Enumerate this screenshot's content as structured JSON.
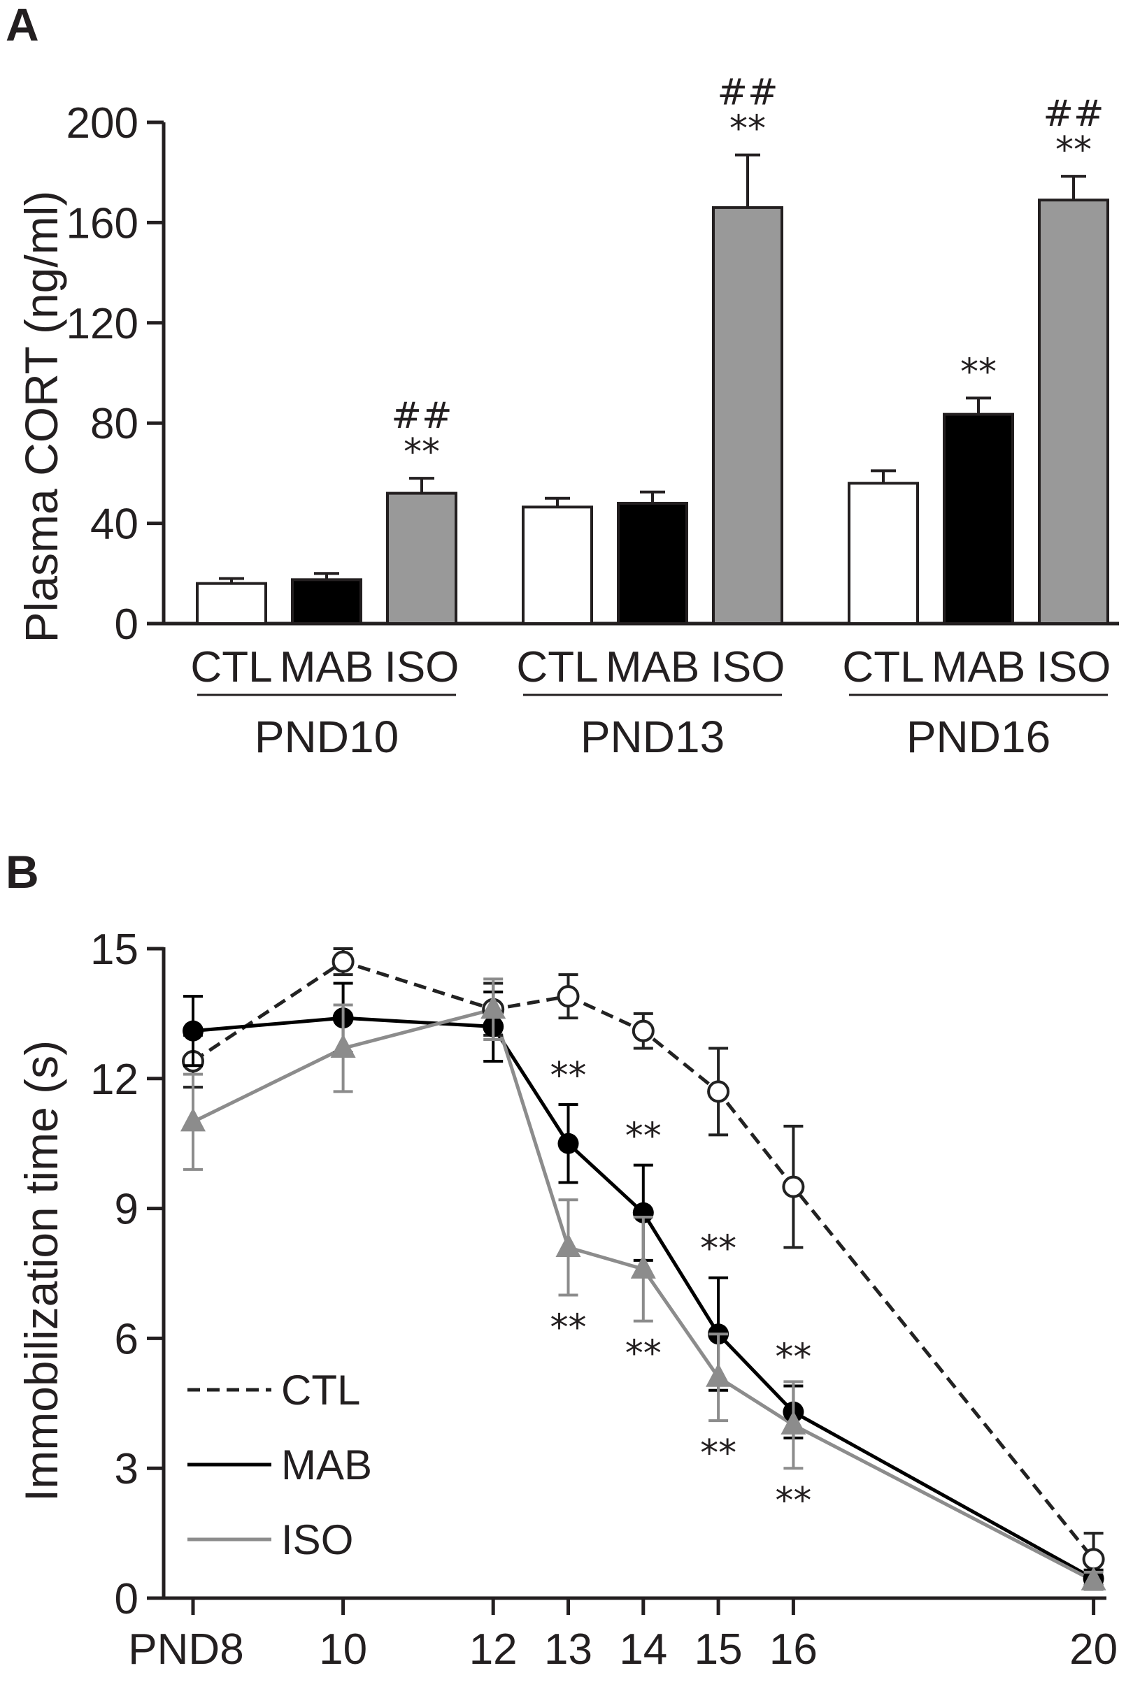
{
  "chart_data": [
    {
      "type": "bar",
      "panel": "A",
      "ylabel": "Plasma CORT (ng/ml)",
      "ylim": [
        0,
        200
      ],
      "yticks": [
        "0",
        "40",
        "80",
        "120",
        "160",
        "200"
      ],
      "groups": [
        {
          "label": "PND10",
          "bars": [
            {
              "label": "CTL",
              "value": 16,
              "error": 2,
              "fill": "#ffffff",
              "stars": "",
              "hashes": ""
            },
            {
              "label": "MAB",
              "value": 17.5,
              "error": 2.5,
              "fill": "#000000",
              "stars": "",
              "hashes": ""
            },
            {
              "label": "ISO",
              "value": 52,
              "error": 6,
              "fill": "#999999",
              "stars": "**",
              "hashes": "##"
            }
          ]
        },
        {
          "label": "PND13",
          "bars": [
            {
              "label": "CTL",
              "value": 46.5,
              "error": 3.5,
              "fill": "#ffffff",
              "stars": "",
              "hashes": ""
            },
            {
              "label": "MAB",
              "value": 48,
              "error": 4.5,
              "fill": "#000000",
              "stars": "",
              "hashes": ""
            },
            {
              "label": "ISO",
              "value": 166,
              "error": 21,
              "fill": "#999999",
              "stars": "**",
              "hashes": "##"
            }
          ]
        },
        {
          "label": "PND16",
          "bars": [
            {
              "label": "CTL",
              "value": 56,
              "error": 5,
              "fill": "#ffffff",
              "stars": "",
              "hashes": ""
            },
            {
              "label": "MAB",
              "value": 83.5,
              "error": 6.5,
              "fill": "#000000",
              "stars": "**",
              "hashes": ""
            },
            {
              "label": "ISO",
              "value": 169,
              "error": 9.5,
              "fill": "#999999",
              "stars": "**",
              "hashes": "##"
            }
          ]
        }
      ]
    },
    {
      "type": "line",
      "panel": "B",
      "ylabel": "Immobilization time (s)",
      "ylim": [
        0,
        15
      ],
      "yticks": [
        "0",
        "3",
        "6",
        "9",
        "12",
        "15"
      ],
      "x": [
        8,
        10,
        12,
        13,
        14,
        15,
        16,
        20
      ],
      "xticklabels": [
        "PND8",
        "10",
        "12",
        "13",
        "14",
        "15",
        "16",
        "20"
      ],
      "series": [
        {
          "name": "CTL",
          "color": "#222222",
          "dash": true,
          "marker": "open-circle",
          "values": [
            12.4,
            14.7,
            13.6,
            13.9,
            13.1,
            11.7,
            9.5,
            0.9
          ],
          "errors": [
            0.6,
            0.3,
            0.6,
            0.5,
            0.4,
            1.0,
            1.4,
            0.6
          ],
          "stars_above": [
            "",
            "",
            "",
            "",
            "",
            "",
            "",
            ""
          ],
          "stars_below": [
            "",
            "",
            "",
            "",
            "",
            "",
            "",
            ""
          ]
        },
        {
          "name": "MAB",
          "color": "#000000",
          "dash": false,
          "marker": "filled-circle",
          "values": [
            13.1,
            13.4,
            13.2,
            10.5,
            8.9,
            6.1,
            4.3,
            0.45
          ],
          "errors": [
            0.8,
            0.8,
            0.8,
            0.9,
            1.1,
            1.3,
            0.6,
            0.2
          ],
          "stars_above": [
            "",
            "",
            "",
            "**",
            "**",
            "**",
            "**",
            ""
          ],
          "stars_below": [
            "",
            "",
            "",
            "",
            "",
            "",
            "",
            ""
          ]
        },
        {
          "name": "ISO",
          "color": "#8c8c8c",
          "dash": false,
          "marker": "filled-triangle",
          "values": [
            11.0,
            12.7,
            13.6,
            8.1,
            7.6,
            5.1,
            4.0,
            0.4
          ],
          "errors": [
            1.1,
            1.0,
            0.7,
            1.1,
            1.2,
            1.0,
            1.0,
            0.2
          ],
          "stars_above": [
            "",
            "",
            "",
            "",
            "",
            "",
            "",
            ""
          ],
          "stars_below": [
            "",
            "",
            "",
            "**",
            "**",
            "**",
            "**",
            ""
          ]
        }
      ],
      "legend": [
        "CTL",
        "MAB",
        "ISO"
      ]
    }
  ]
}
